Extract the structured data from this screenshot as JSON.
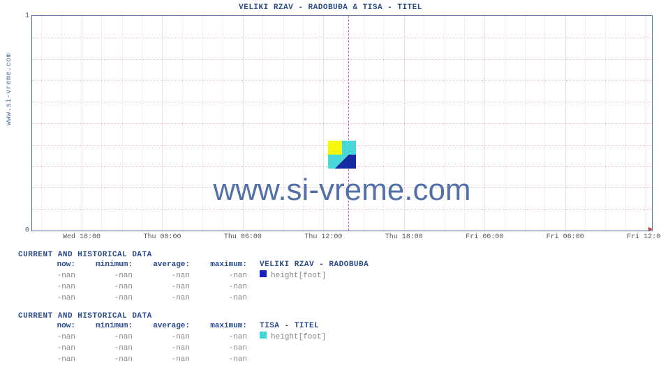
{
  "chart": {
    "title": "VELIKI RZAV -  RADOBUĐA &  TISA -  TITEL",
    "yaxis_label": "www.si-vreme.com",
    "watermark": "www.si-vreme.com",
    "background_color": "#ffffff",
    "border_color": "#4a6aa5",
    "grid_color": "#e2c6c6",
    "minor_grid_color": "#f0dcdc",
    "cursor_color": "#d94fd9",
    "ylim": [
      0,
      1
    ],
    "yticks": [
      {
        "pos_pct": 100,
        "label": "0"
      },
      {
        "pos_pct": 0,
        "label": "1"
      }
    ],
    "xticks": [
      {
        "pos_pct": 8.0,
        "label": "Wed 18:00"
      },
      {
        "pos_pct": 21.0,
        "label": "Thu 00:00"
      },
      {
        "pos_pct": 34.0,
        "label": "Thu 06:00"
      },
      {
        "pos_pct": 47.0,
        "label": "Thu 12:00"
      },
      {
        "pos_pct": 60.0,
        "label": "Thu 18:00"
      },
      {
        "pos_pct": 73.0,
        "label": "Fri 00:00"
      },
      {
        "pos_pct": 86.0,
        "label": "Fri 06:00"
      },
      {
        "pos_pct": 99.0,
        "label": "Fri 12:00"
      }
    ],
    "minor_vgrid_pct": [
      1.5,
      4.7,
      11.2,
      14.5,
      17.7,
      24.2,
      27.5,
      30.7,
      37.2,
      40.5,
      43.7,
      50.2,
      53.5,
      56.7,
      63.2,
      66.5,
      69.7,
      76.2,
      79.5,
      82.7,
      89.2,
      92.5,
      95.7
    ],
    "hgrid_pct": [
      10,
      20,
      30,
      40,
      50,
      60,
      70,
      80,
      90
    ],
    "cursor_pct": 51.0
  },
  "sections": [
    {
      "header": "CURRENT AND HISTORICAL DATA",
      "series_name": "VELIKI RZAV -  RADOBUĐA",
      "legend_color": "#1a1fbf",
      "legend_label": "height[foot]",
      "columns": [
        "now:",
        "minimum:",
        "average:",
        "maximum:"
      ],
      "rows": [
        [
          "-nan",
          "-nan",
          "-nan",
          "-nan"
        ],
        [
          "-nan",
          "-nan",
          "-nan",
          "-nan"
        ],
        [
          "-nan",
          "-nan",
          "-nan",
          "-nan"
        ]
      ]
    },
    {
      "header": "CURRENT AND HISTORICAL DATA",
      "series_name": "TISA -  TITEL",
      "legend_color": "#3fd6d6",
      "legend_label": "height[foot]",
      "columns": [
        "now:",
        "minimum:",
        "average:",
        "maximum:"
      ],
      "rows": [
        [
          "-nan",
          "-nan",
          "-nan",
          "-nan"
        ],
        [
          "-nan",
          "-nan",
          "-nan",
          "-nan"
        ],
        [
          "-nan",
          "-nan",
          "-nan",
          "-nan"
        ]
      ]
    }
  ]
}
